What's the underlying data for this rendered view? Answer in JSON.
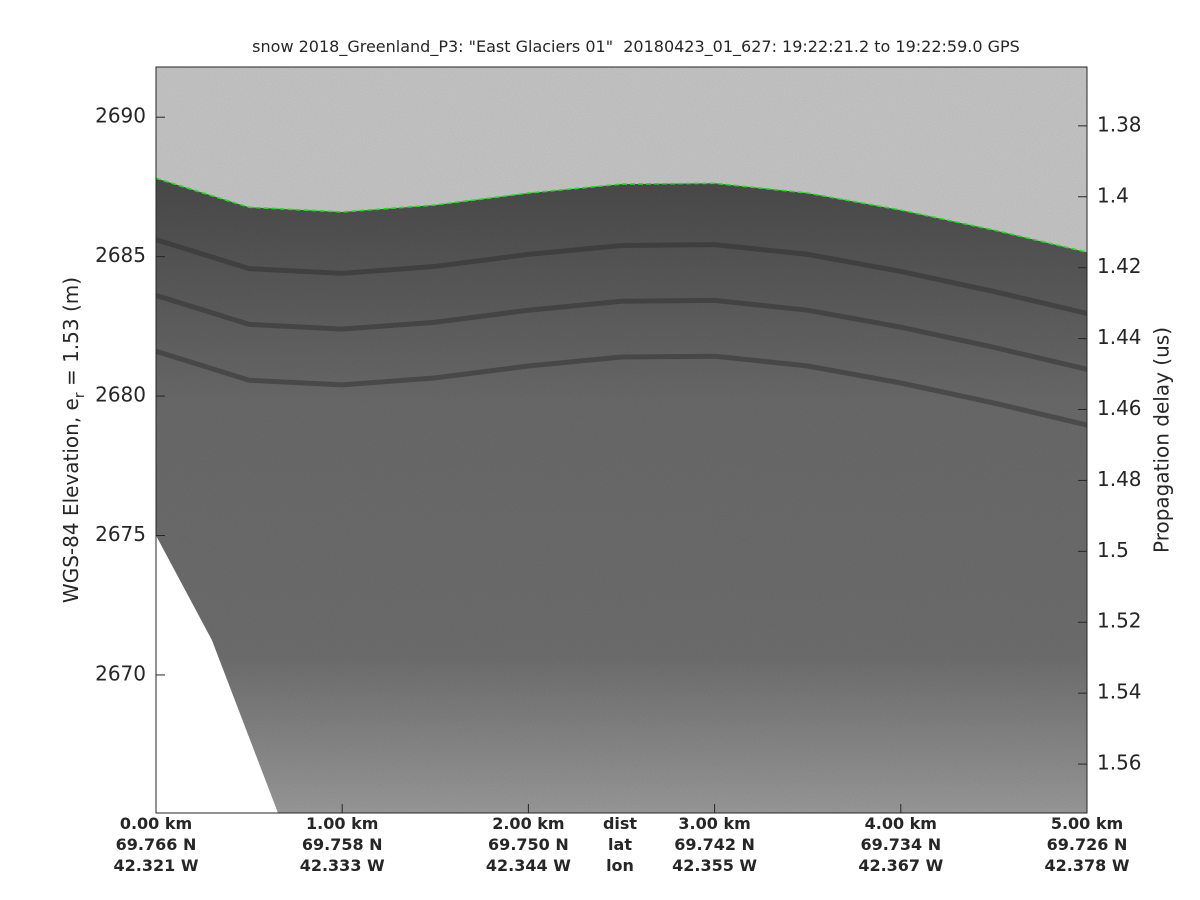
{
  "chart_data": {
    "type": "echogram",
    "title": "snow 2018_Greenland_P3: \"East Glaciers 01\"  20180423_01_627: 19:22:21.2 to 19:22:59.0 GPS",
    "y_label": {
      "main": "WGS-84 Elevation, e",
      "sub": "r",
      "rest": " = 1.53 (m)"
    },
    "y2_label": "Propagation delay (us)",
    "xlim": [
      0,
      5
    ],
    "xticks": [
      {
        "value": 0,
        "label": "0.00 km"
      },
      {
        "value": 1,
        "label": "1.00 km"
      },
      {
        "value": 2,
        "label": "2.00 km"
      },
      {
        "value": 3,
        "label": "3.00 km"
      },
      {
        "value": 4,
        "label": "4.00 km"
      },
      {
        "value": 5,
        "label": "5.00 km"
      }
    ],
    "lat_labels": [
      "69.766 N",
      "69.758 N",
      "69.750 N",
      "69.742 N",
      "69.734 N",
      "69.726 N"
    ],
    "lon_labels": [
      "42.321 W",
      "42.333 W",
      "42.344 W",
      "42.355 W",
      "42.367 W",
      "42.378 W"
    ],
    "row_labels": [
      "dist",
      "lat",
      "lon"
    ],
    "ylim": [
      2665.05,
      2691.8
    ],
    "yticks": [
      2670,
      2675,
      2680,
      2685,
      2690
    ],
    "y2lim": [
      1.3634,
      1.5738
    ],
    "y2_reversed": true,
    "y2ticks": [
      1.38,
      1.4,
      1.42,
      1.44,
      1.46,
      1.48,
      1.5,
      1.52,
      1.54,
      1.56
    ],
    "x": [
      0,
      0.5,
      1,
      1.5,
      2,
      2.5,
      3,
      3.5,
      4,
      4.5,
      5
    ],
    "surface": {
      "color": "#22dd22",
      "values": [
        2687.81,
        2686.77,
        2686.6,
        2686.85,
        2687.28,
        2687.6,
        2687.63,
        2687.28,
        2686.67,
        2685.95,
        2685.16
      ]
    },
    "layers": {
      "color": "#2a2a2a",
      "values": [
        [
          2685.61,
          2684.57,
          2684.4,
          2684.65,
          2685.08,
          2685.4,
          2685.43,
          2685.08,
          2684.47,
          2683.75,
          2682.96
        ],
        [
          2683.61,
          2682.57,
          2682.4,
          2682.65,
          2683.08,
          2683.4,
          2683.43,
          2683.08,
          2682.47,
          2681.75,
          2680.96
        ],
        [
          2681.61,
          2680.57,
          2680.4,
          2680.65,
          2681.08,
          2681.4,
          2681.43,
          2681.08,
          2680.47,
          2679.75,
          2678.96
        ]
      ]
    },
    "no_data": {
      "x": [
        0,
        0.3,
        0.655
      ],
      "y": [
        2675,
        2671.25,
        2665.05
      ]
    }
  }
}
